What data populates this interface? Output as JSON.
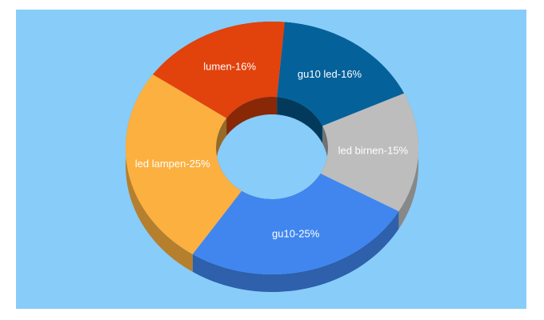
{
  "chart_data": {
    "type": "donut3d",
    "values": [
      16,
      15,
      25,
      25,
      16
    ],
    "value_labels": [
      "gu10 led-16%",
      "led birnen-15%",
      "gu10-25%",
      "led lampen-25%",
      "lumen-16%"
    ],
    "colors": [
      "#05619a",
      "#bdbdbd",
      "#4086ee",
      "#fbb040",
      "#e2420c"
    ],
    "background": "#88ccf9"
  }
}
